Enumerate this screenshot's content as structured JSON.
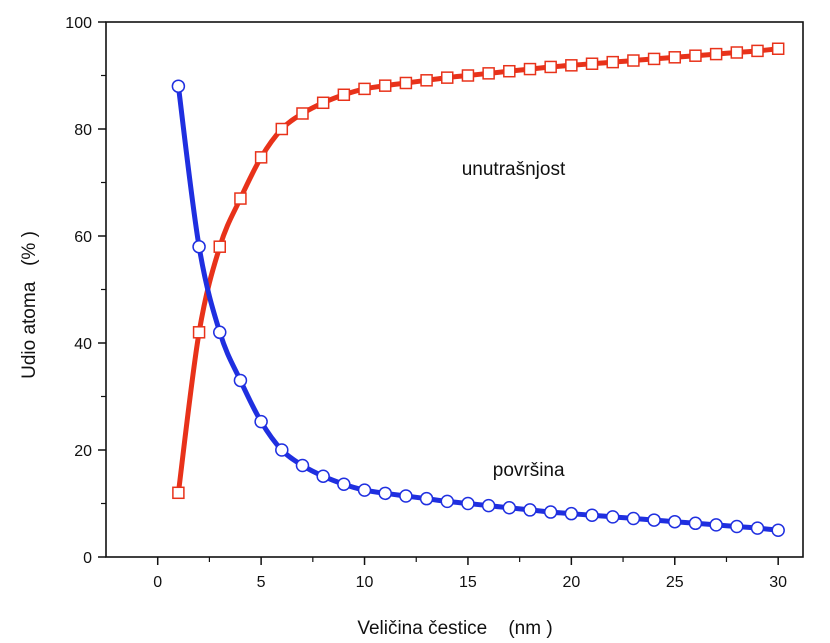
{
  "chart_data": {
    "type": "line",
    "xlabel": "Veličina čestice    (nm )",
    "ylabel": "Udio atoma   (% )",
    "xlim": [
      -2.5,
      31.2
    ],
    "ylim": [
      0,
      100
    ],
    "xticks": [
      0,
      5,
      10,
      15,
      20,
      25,
      30
    ],
    "yticks": [
      0,
      20,
      40,
      60,
      80,
      100
    ],
    "grid": false,
    "legend": "none",
    "annotations": [
      {
        "text": "unutrašnjost",
        "x": 14.7,
        "y": 72.5
      },
      {
        "text": "površina",
        "x": 16.2,
        "y": 16.3
      }
    ],
    "series": [
      {
        "color": "#e8321a",
        "marker": "square",
        "x": [
          1,
          2,
          3,
          4,
          5,
          6,
          7,
          8,
          9,
          10,
          11,
          12,
          13,
          14,
          15,
          16,
          17,
          18,
          19,
          20,
          21,
          22,
          23,
          24,
          25,
          26,
          27,
          28,
          29,
          30
        ],
        "values": [
          12,
          42,
          58,
          67,
          74.7,
          80,
          82.9,
          84.9,
          86.4,
          87.5,
          88.1,
          88.6,
          89.1,
          89.6,
          90,
          90.4,
          90.8,
          91.2,
          91.6,
          91.9,
          92.2,
          92.5,
          92.8,
          93.1,
          93.4,
          93.7,
          94,
          94.3,
          94.6,
          95
        ]
      },
      {
        "color": "#1f2fe0",
        "marker": "circle",
        "x": [
          1,
          2,
          3,
          4,
          5,
          6,
          7,
          8,
          9,
          10,
          11,
          12,
          13,
          14,
          15,
          16,
          17,
          18,
          19,
          20,
          21,
          22,
          23,
          24,
          25,
          26,
          27,
          28,
          29,
          30
        ],
        "values": [
          88,
          58,
          42,
          33,
          25.3,
          20,
          17.1,
          15.1,
          13.6,
          12.5,
          11.9,
          11.4,
          10.9,
          10.4,
          10,
          9.6,
          9.2,
          8.8,
          8.4,
          8.1,
          7.8,
          7.5,
          7.2,
          6.9,
          6.6,
          6.3,
          6,
          5.7,
          5.4,
          5
        ]
      }
    ]
  }
}
